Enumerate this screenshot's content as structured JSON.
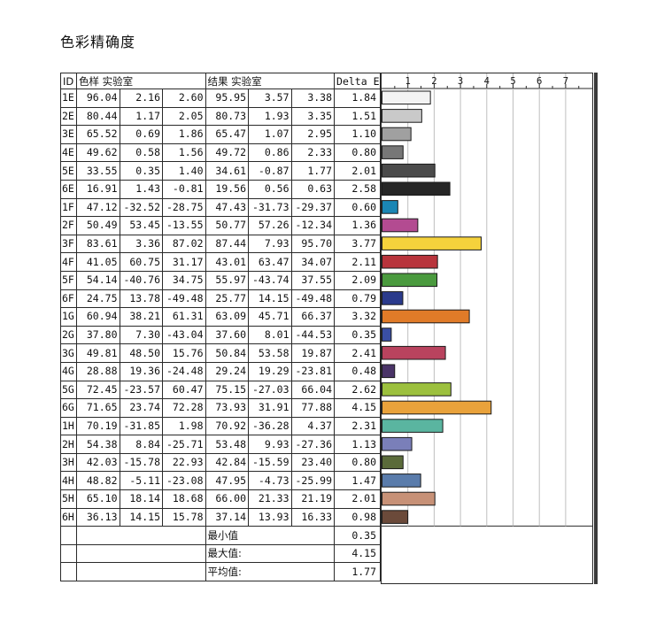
{
  "page": {
    "title": "色彩精确度"
  },
  "table": {
    "headers": {
      "id": "ID",
      "sample": "色样 实验室",
      "result": "结果 实验室",
      "delta_e": "Delta E"
    },
    "rows": [
      {
        "id": "1E",
        "sample": [
          "96.04",
          "2.16",
          "2.60"
        ],
        "result": [
          "95.95",
          "3.57",
          "3.38"
        ],
        "de": "1.84"
      },
      {
        "id": "2E",
        "sample": [
          "80.44",
          "1.17",
          "2.05"
        ],
        "result": [
          "80.73",
          "1.93",
          "3.35"
        ],
        "de": "1.51"
      },
      {
        "id": "3E",
        "sample": [
          "65.52",
          "0.69",
          "1.86"
        ],
        "result": [
          "65.47",
          "1.07",
          "2.95"
        ],
        "de": "1.10"
      },
      {
        "id": "4E",
        "sample": [
          "49.62",
          "0.58",
          "1.56"
        ],
        "result": [
          "49.72",
          "0.86",
          "2.33"
        ],
        "de": "0.80"
      },
      {
        "id": "5E",
        "sample": [
          "33.55",
          "0.35",
          "1.40"
        ],
        "result": [
          "34.61",
          "-0.87",
          "1.77"
        ],
        "de": "2.01"
      },
      {
        "id": "6E",
        "sample": [
          "16.91",
          "1.43",
          "-0.81"
        ],
        "result": [
          "19.56",
          "0.56",
          "0.63"
        ],
        "de": "2.58"
      },
      {
        "id": "1F",
        "sample": [
          "47.12",
          "-32.52",
          "-28.75"
        ],
        "result": [
          "47.43",
          "-31.73",
          "-29.37"
        ],
        "de": "0.60"
      },
      {
        "id": "2F",
        "sample": [
          "50.49",
          "53.45",
          "-13.55"
        ],
        "result": [
          "50.77",
          "57.26",
          "-12.34"
        ],
        "de": "1.36"
      },
      {
        "id": "3F",
        "sample": [
          "83.61",
          "3.36",
          "87.02"
        ],
        "result": [
          "87.44",
          "7.93",
          "95.70"
        ],
        "de": "3.77"
      },
      {
        "id": "4F",
        "sample": [
          "41.05",
          "60.75",
          "31.17"
        ],
        "result": [
          "43.01",
          "63.47",
          "34.07"
        ],
        "de": "2.11"
      },
      {
        "id": "5F",
        "sample": [
          "54.14",
          "-40.76",
          "34.75"
        ],
        "result": [
          "55.97",
          "-43.74",
          "37.55"
        ],
        "de": "2.09"
      },
      {
        "id": "6F",
        "sample": [
          "24.75",
          "13.78",
          "-49.48"
        ],
        "result": [
          "25.77",
          "14.15",
          "-49.48"
        ],
        "de": "0.79"
      },
      {
        "id": "1G",
        "sample": [
          "60.94",
          "38.21",
          "61.31"
        ],
        "result": [
          "63.09",
          "45.71",
          "66.37"
        ],
        "de": "3.32"
      },
      {
        "id": "2G",
        "sample": [
          "37.80",
          "7.30",
          "-43.04"
        ],
        "result": [
          "37.60",
          "8.01",
          "-44.53"
        ],
        "de": "0.35"
      },
      {
        "id": "3G",
        "sample": [
          "49.81",
          "48.50",
          "15.76"
        ],
        "result": [
          "50.84",
          "53.58",
          "19.87"
        ],
        "de": "2.41"
      },
      {
        "id": "4G",
        "sample": [
          "28.88",
          "19.36",
          "-24.48"
        ],
        "result": [
          "29.24",
          "19.29",
          "-23.81"
        ],
        "de": "0.48"
      },
      {
        "id": "5G",
        "sample": [
          "72.45",
          "-23.57",
          "60.47"
        ],
        "result": [
          "75.15",
          "-27.03",
          "66.04"
        ],
        "de": "2.62"
      },
      {
        "id": "6G",
        "sample": [
          "71.65",
          "23.74",
          "72.28"
        ],
        "result": [
          "73.93",
          "31.91",
          "77.88"
        ],
        "de": "4.15"
      },
      {
        "id": "1H",
        "sample": [
          "70.19",
          "-31.85",
          "1.98"
        ],
        "result": [
          "70.92",
          "-36.28",
          "4.37"
        ],
        "de": "2.31"
      },
      {
        "id": "2H",
        "sample": [
          "54.38",
          "8.84",
          "-25.71"
        ],
        "result": [
          "53.48",
          "9.93",
          "-27.36"
        ],
        "de": "1.13"
      },
      {
        "id": "3H",
        "sample": [
          "42.03",
          "-15.78",
          "22.93"
        ],
        "result": [
          "42.84",
          "-15.59",
          "23.40"
        ],
        "de": "0.80"
      },
      {
        "id": "4H",
        "sample": [
          "48.82",
          "-5.11",
          "-23.08"
        ],
        "result": [
          "47.95",
          "-4.73",
          "-25.99"
        ],
        "de": "1.47"
      },
      {
        "id": "5H",
        "sample": [
          "65.10",
          "18.14",
          "18.68"
        ],
        "result": [
          "66.00",
          "21.33",
          "21.19"
        ],
        "de": "2.01"
      },
      {
        "id": "6H",
        "sample": [
          "36.13",
          "14.15",
          "15.78"
        ],
        "result": [
          "37.14",
          "13.93",
          "16.33"
        ],
        "de": "0.98"
      }
    ],
    "summary": [
      {
        "label": "最小值",
        "value": "0.35"
      },
      {
        "label": "最大值:",
        "value": "4.15"
      },
      {
        "label": "平均值:",
        "value": "1.77"
      }
    ]
  },
  "chart_data": {
    "type": "bar",
    "orientation": "horizontal",
    "title": "",
    "xlabel": "",
    "ylabel": "",
    "xlim": [
      0,
      8
    ],
    "ticks": [
      "1",
      "2",
      "3",
      "4",
      "5",
      "6",
      "7"
    ],
    "grid": true,
    "categories": [
      "1E",
      "2E",
      "3E",
      "4E",
      "5E",
      "6E",
      "1F",
      "2F",
      "3F",
      "4F",
      "5F",
      "6F",
      "1G",
      "2G",
      "3G",
      "4G",
      "5G",
      "6G",
      "1H",
      "2H",
      "3H",
      "4H",
      "5H",
      "6H"
    ],
    "values": [
      1.84,
      1.51,
      1.1,
      0.8,
      2.01,
      2.58,
      0.6,
      1.36,
      3.77,
      2.11,
      2.09,
      0.79,
      3.32,
      0.35,
      2.41,
      0.48,
      2.62,
      4.15,
      2.31,
      1.13,
      0.8,
      1.47,
      2.01,
      0.98
    ],
    "colors": [
      "#f3f3f3",
      "#c9c9c9",
      "#a0a0a0",
      "#777777",
      "#4b4b4b",
      "#262626",
      "#1b86b4",
      "#b34b91",
      "#f5d23c",
      "#b8343c",
      "#4a9a3e",
      "#2a3a8c",
      "#e07b28",
      "#3a4fa5",
      "#b9435e",
      "#4a3468",
      "#9cc03e",
      "#e9a23b",
      "#5ab5a0",
      "#7a7fb9",
      "#5b6b3a",
      "#5a7cab",
      "#c79177",
      "#6b4a3a"
    ]
  }
}
